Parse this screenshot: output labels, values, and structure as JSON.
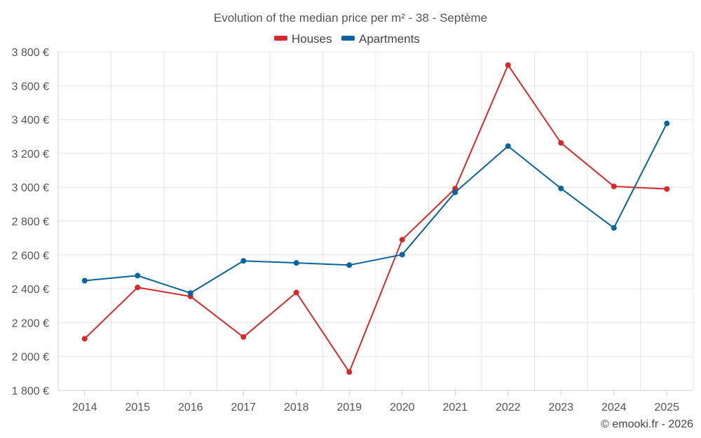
{
  "chart_data": {
    "type": "line",
    "title": "Evolution of the median price per m² - 38 - Septème",
    "categories": [
      "2014",
      "2015",
      "2016",
      "2017",
      "2018",
      "2019",
      "2020",
      "2021",
      "2022",
      "2023",
      "2024",
      "2025"
    ],
    "series": [
      {
        "name": "Houses",
        "color": "#d42a2a",
        "values": [
          2105,
          2408,
          2355,
          2115,
          2378,
          1908,
          2690,
          2992,
          3722,
          3262,
          3005,
          2990
        ]
      },
      {
        "name": "Apartments",
        "color": "#07649c",
        "values": [
          2448,
          2478,
          2375,
          2565,
          2553,
          2540,
          2602,
          2970,
          3243,
          2993,
          2760,
          3377
        ]
      }
    ],
    "ylim": [
      1800,
      3800
    ],
    "yticks": [
      1800,
      2000,
      2200,
      2400,
      2600,
      2800,
      3000,
      3200,
      3400,
      3600,
      3800
    ],
    "ytick_labels": [
      "1 800 €",
      "2 000 €",
      "2 200 €",
      "2 400 €",
      "2 600 €",
      "2 800 €",
      "3 000 €",
      "3 200 €",
      "3 400 €",
      "3 600 €",
      "3 800 €"
    ],
    "xlabel": "",
    "ylabel": "",
    "grid": true,
    "legend_position": "top-center"
  },
  "credit": "© emooki.fr - 2026"
}
